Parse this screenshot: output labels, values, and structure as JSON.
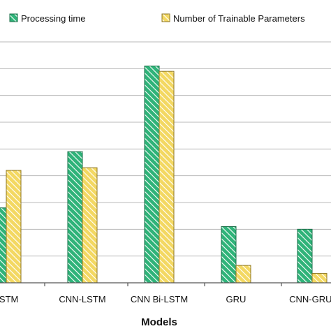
{
  "chart_data": {
    "type": "bar",
    "categories": [
      "LSTM",
      "CNN-LSTM",
      "CNN Bi-LSTM",
      "GRU",
      "CNN-GRU-"
    ],
    "series": [
      {
        "name": "Processing time",
        "values": [
          2.8,
          4.9,
          8.1,
          2.1,
          2.0
        ]
      },
      {
        "name": "Number of Trainable Parameters",
        "values": [
          4.2,
          4.3,
          7.9,
          0.65,
          0.35
        ]
      }
    ],
    "ylim": [
      0,
      9.0
    ],
    "grid": true,
    "legend_position": "top",
    "xlabel": "Models",
    "ylabel": "",
    "title": "",
    "colors": {
      "series0": "#2fb379",
      "series1": "#f3d862",
      "grid": "#b8b8b8",
      "axis": "#555555"
    }
  }
}
